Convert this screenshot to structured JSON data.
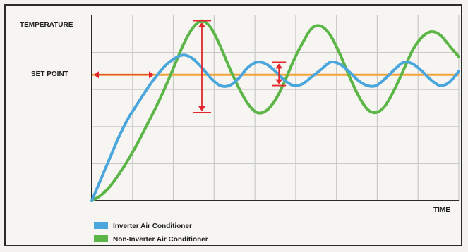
{
  "chart_data": {
    "type": "line",
    "ylabel": "TEMPERATURE",
    "xlabel": "TIME",
    "set_point_label": "SET POINT",
    "set_point": 0.0,
    "x": [
      0,
      0.5,
      1,
      1.5,
      2,
      2.5,
      3,
      3.5,
      4,
      4.5,
      5,
      5.5,
      6,
      6.5,
      7,
      7.5,
      8,
      8.5,
      9,
      9.5,
      10,
      10.5,
      11,
      11.5,
      12,
      12.5,
      13,
      13.5,
      14,
      14.5,
      15,
      15.5,
      16,
      16.5,
      17,
      17.5,
      18,
      18.5,
      19,
      19.5,
      20
    ],
    "series": [
      {
        "name": "Inverter Air Conditioner",
        "color": "#4aa6dc",
        "values": [
          -3.5,
          -2.9,
          -2.3,
          -1.7,
          -1.2,
          -0.8,
          -0.4,
          -0.05,
          0.25,
          0.45,
          0.55,
          0.45,
          0.2,
          -0.1,
          -0.3,
          -0.3,
          -0.1,
          0.2,
          0.35,
          0.3,
          0.1,
          -0.15,
          -0.3,
          -0.25,
          -0.05,
          0.15,
          0.35,
          0.3,
          0.1,
          -0.15,
          -0.3,
          -0.3,
          -0.1,
          0.15,
          0.35,
          0.3,
          0.1,
          -0.15,
          -0.3,
          -0.2,
          0.1
        ]
      },
      {
        "name": "Non-Inverter Air Conditioner",
        "color": "#5cb547",
        "values": [
          -3.5,
          -3.35,
          -3.1,
          -2.75,
          -2.35,
          -1.9,
          -1.4,
          -0.9,
          -0.35,
          0.25,
          0.85,
          1.3,
          1.5,
          1.3,
          0.8,
          0.2,
          -0.35,
          -0.8,
          -1.05,
          -1.0,
          -0.7,
          -0.2,
          0.4,
          0.9,
          1.3,
          1.35,
          1.1,
          0.6,
          0.0,
          -0.55,
          -0.95,
          -1.05,
          -0.85,
          -0.4,
          0.15,
          0.7,
          1.05,
          1.2,
          1.1,
          0.8,
          0.5
        ]
      }
    ],
    "set_point_color": "#f3a33a",
    "marker_color": "#e2262b",
    "ylim": [
      -3.5,
      1.65
    ],
    "xlim": [
      0,
      20
    ],
    "grid": true
  }
}
